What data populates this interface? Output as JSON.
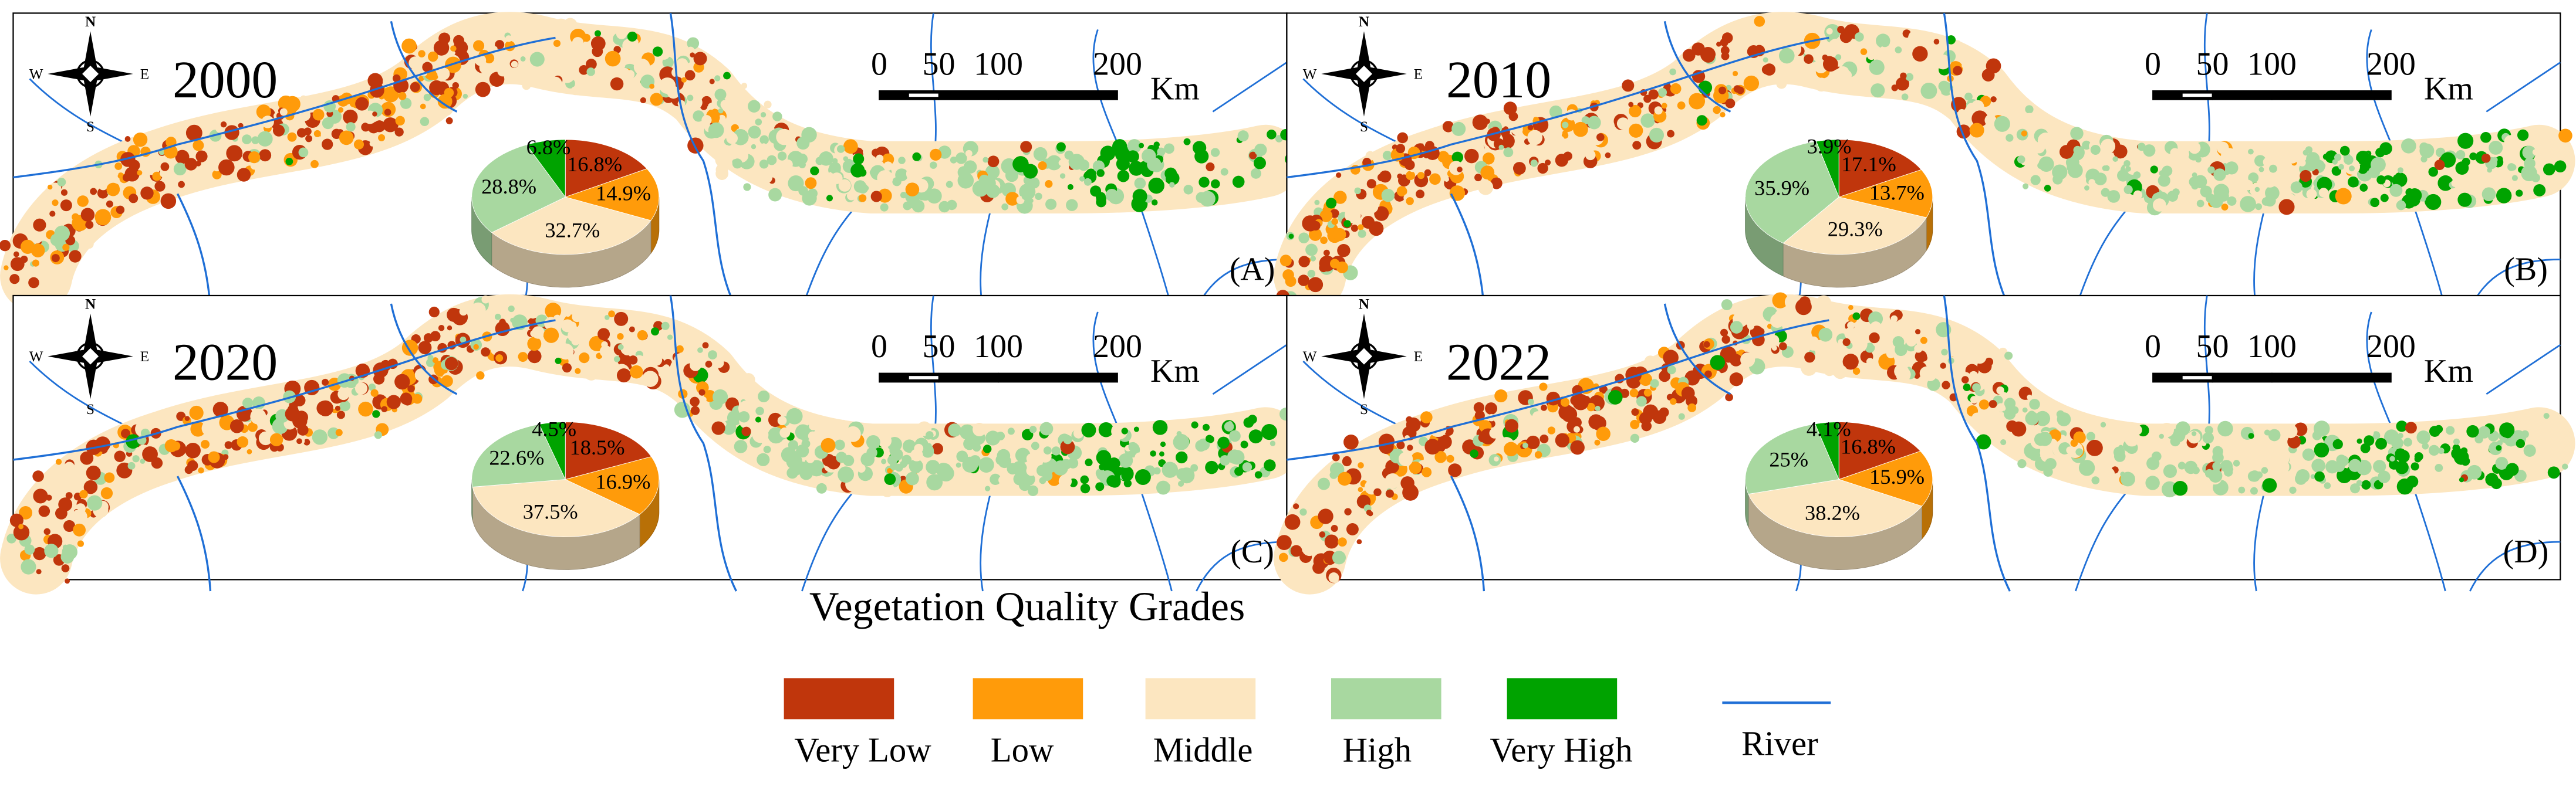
{
  "panels": [
    {
      "year": "2000",
      "label": "(A)",
      "pie": {
        "type": "pie",
        "values": [
          16.8,
          14.9,
          32.7,
          28.8,
          6.8
        ],
        "value_labels": [
          "16.8%",
          "14.9%",
          "32.7%",
          "28.8%",
          "6.8%"
        ]
      }
    },
    {
      "year": "2010",
      "label": "(B)",
      "pie": {
        "type": "pie",
        "values": [
          17.1,
          13.7,
          29.3,
          35.9,
          3.9
        ],
        "value_labels": [
          "17.1%",
          "13.7%",
          "29.3%",
          "35.9%",
          "3.9%"
        ]
      }
    },
    {
      "year": "2020",
      "label": "(C)",
      "pie": {
        "type": "pie",
        "values": [
          18.5,
          16.9,
          37.5,
          22.6,
          4.5
        ],
        "value_labels": [
          "18.5%",
          "16.9%",
          "37.5%",
          "22.6%",
          "4.5%"
        ]
      }
    },
    {
      "year": "2022",
      "label": "(D)",
      "pie": {
        "type": "pie",
        "values": [
          16.8,
          15.9,
          38.2,
          25,
          4.1
        ],
        "value_labels": [
          "16.8%",
          "15.9%",
          "38.2%",
          "25%",
          "4.1%"
        ]
      }
    }
  ],
  "compass": {
    "north": "N",
    "south": "S",
    "east": "E",
    "west": "W"
  },
  "scale_bar": {
    "ticks": [
      0,
      50,
      100,
      200
    ],
    "unit": "Km"
  },
  "legend": {
    "title": "Vegetation Quality Grades",
    "items": [
      {
        "name": "Very Low",
        "color": "#c0360c"
      },
      {
        "name": "Low",
        "color": "#ff9b0a"
      },
      {
        "name": "Middle",
        "color": "#fce6c0"
      },
      {
        "name": "High",
        "color": "#a8d8a0"
      },
      {
        "name": "Very High",
        "color": "#00a300"
      },
      {
        "name": "River",
        "color": "#1f6fd6"
      }
    ]
  }
}
